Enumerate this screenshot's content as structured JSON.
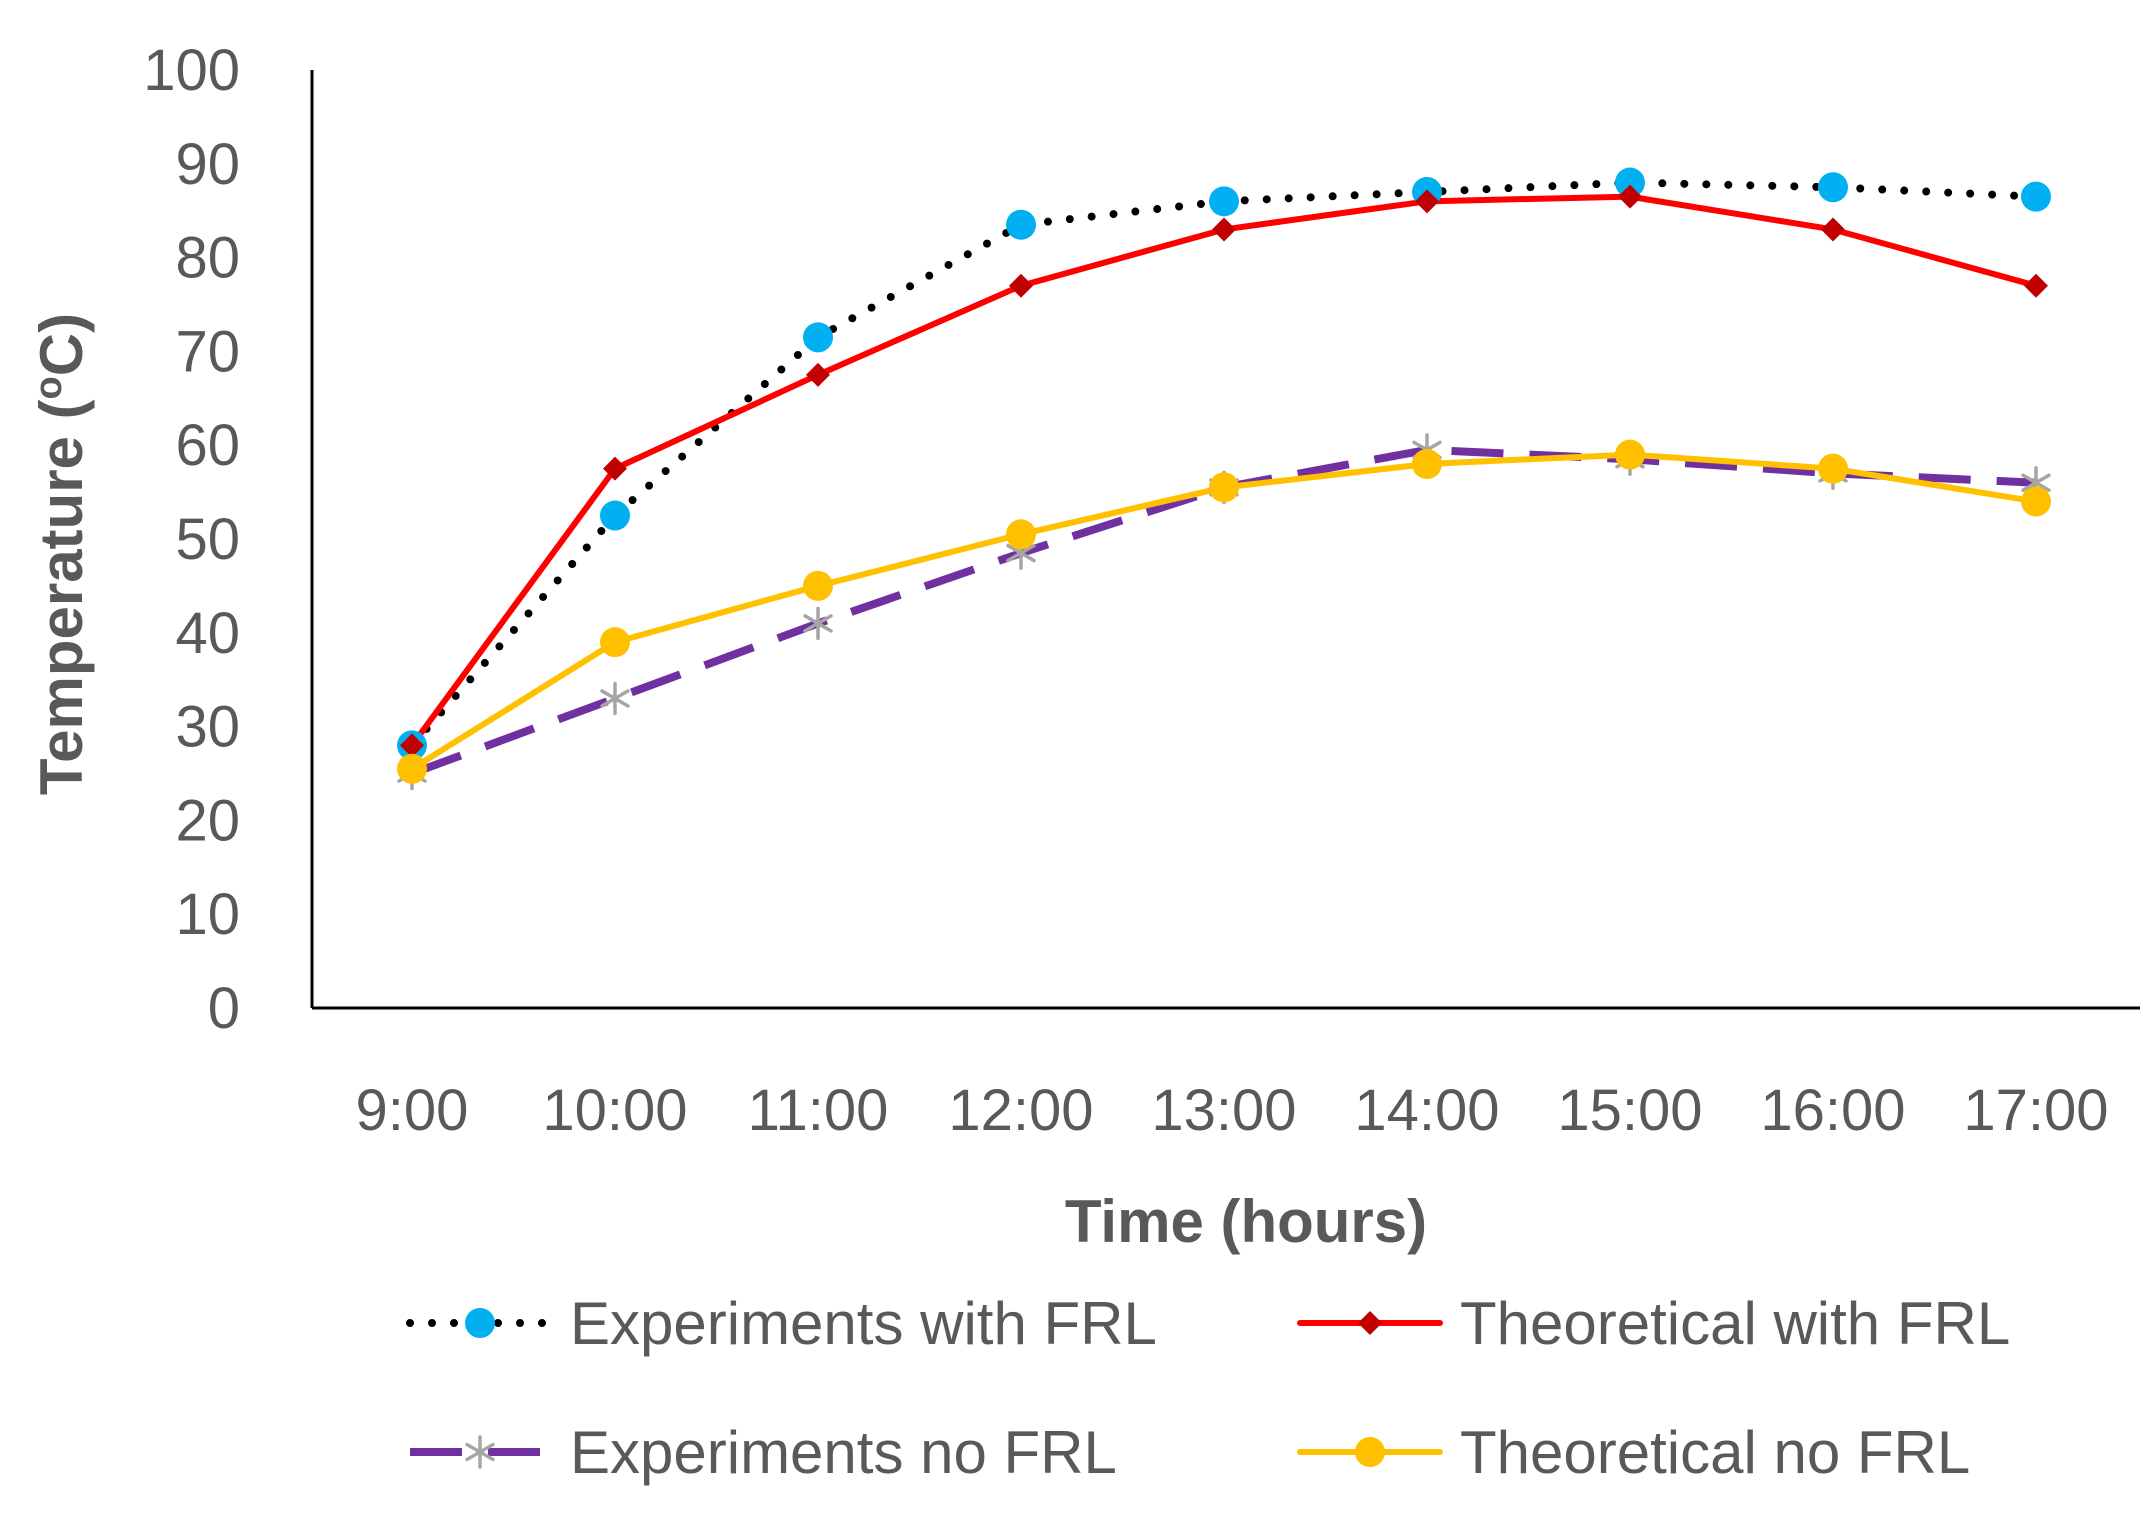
{
  "chart_data": {
    "type": "line",
    "title": "",
    "xlabel": "Time (hours)",
    "ylabel": "Temperature (°C)",
    "ylabel_prefix": "Temperature (",
    "ylabel_unit_super": "o",
    "ylabel_unit_rest": "C)",
    "ylim": [
      0,
      100
    ],
    "yticks": [
      0,
      10,
      20,
      30,
      40,
      50,
      60,
      70,
      80,
      90,
      100
    ],
    "categories": [
      "9:00",
      "10:00",
      "11:00",
      "12:00",
      "13:00",
      "14:00",
      "15:00",
      "16:00",
      "17:00"
    ],
    "grid": false,
    "legend_position": "bottom",
    "series": [
      {
        "name": "Experiments with FRL",
        "line_color": "#000000",
        "marker_color": "#00B0F0",
        "line_style": "dotted",
        "marker": "circle",
        "values": [
          28,
          52.5,
          71.5,
          83.5,
          86,
          87,
          88,
          87.5,
          86.5
        ]
      },
      {
        "name": "Theoretical with FRL",
        "line_color": "#FF0000",
        "marker_color": "#C00000",
        "line_style": "solid",
        "marker": "diamond",
        "values": [
          28,
          57.5,
          67.5,
          77,
          83,
          86,
          86.5,
          83,
          77
        ]
      },
      {
        "name": "Experiments no FRL",
        "line_color": "#7030A0",
        "marker_color": "#A5A5A5",
        "line_style": "dashed",
        "marker": "asterisk",
        "values": [
          25,
          33,
          41,
          48.5,
          55.5,
          59.5,
          58.5,
          57,
          56
        ]
      },
      {
        "name": "Theoretical no FRL",
        "line_color": "#FFC000",
        "marker_color": "#FFC000",
        "line_style": "solid",
        "marker": "circle",
        "values": [
          25.5,
          39,
          45,
          50.5,
          55.5,
          58,
          59,
          57.5,
          54
        ]
      }
    ]
  }
}
